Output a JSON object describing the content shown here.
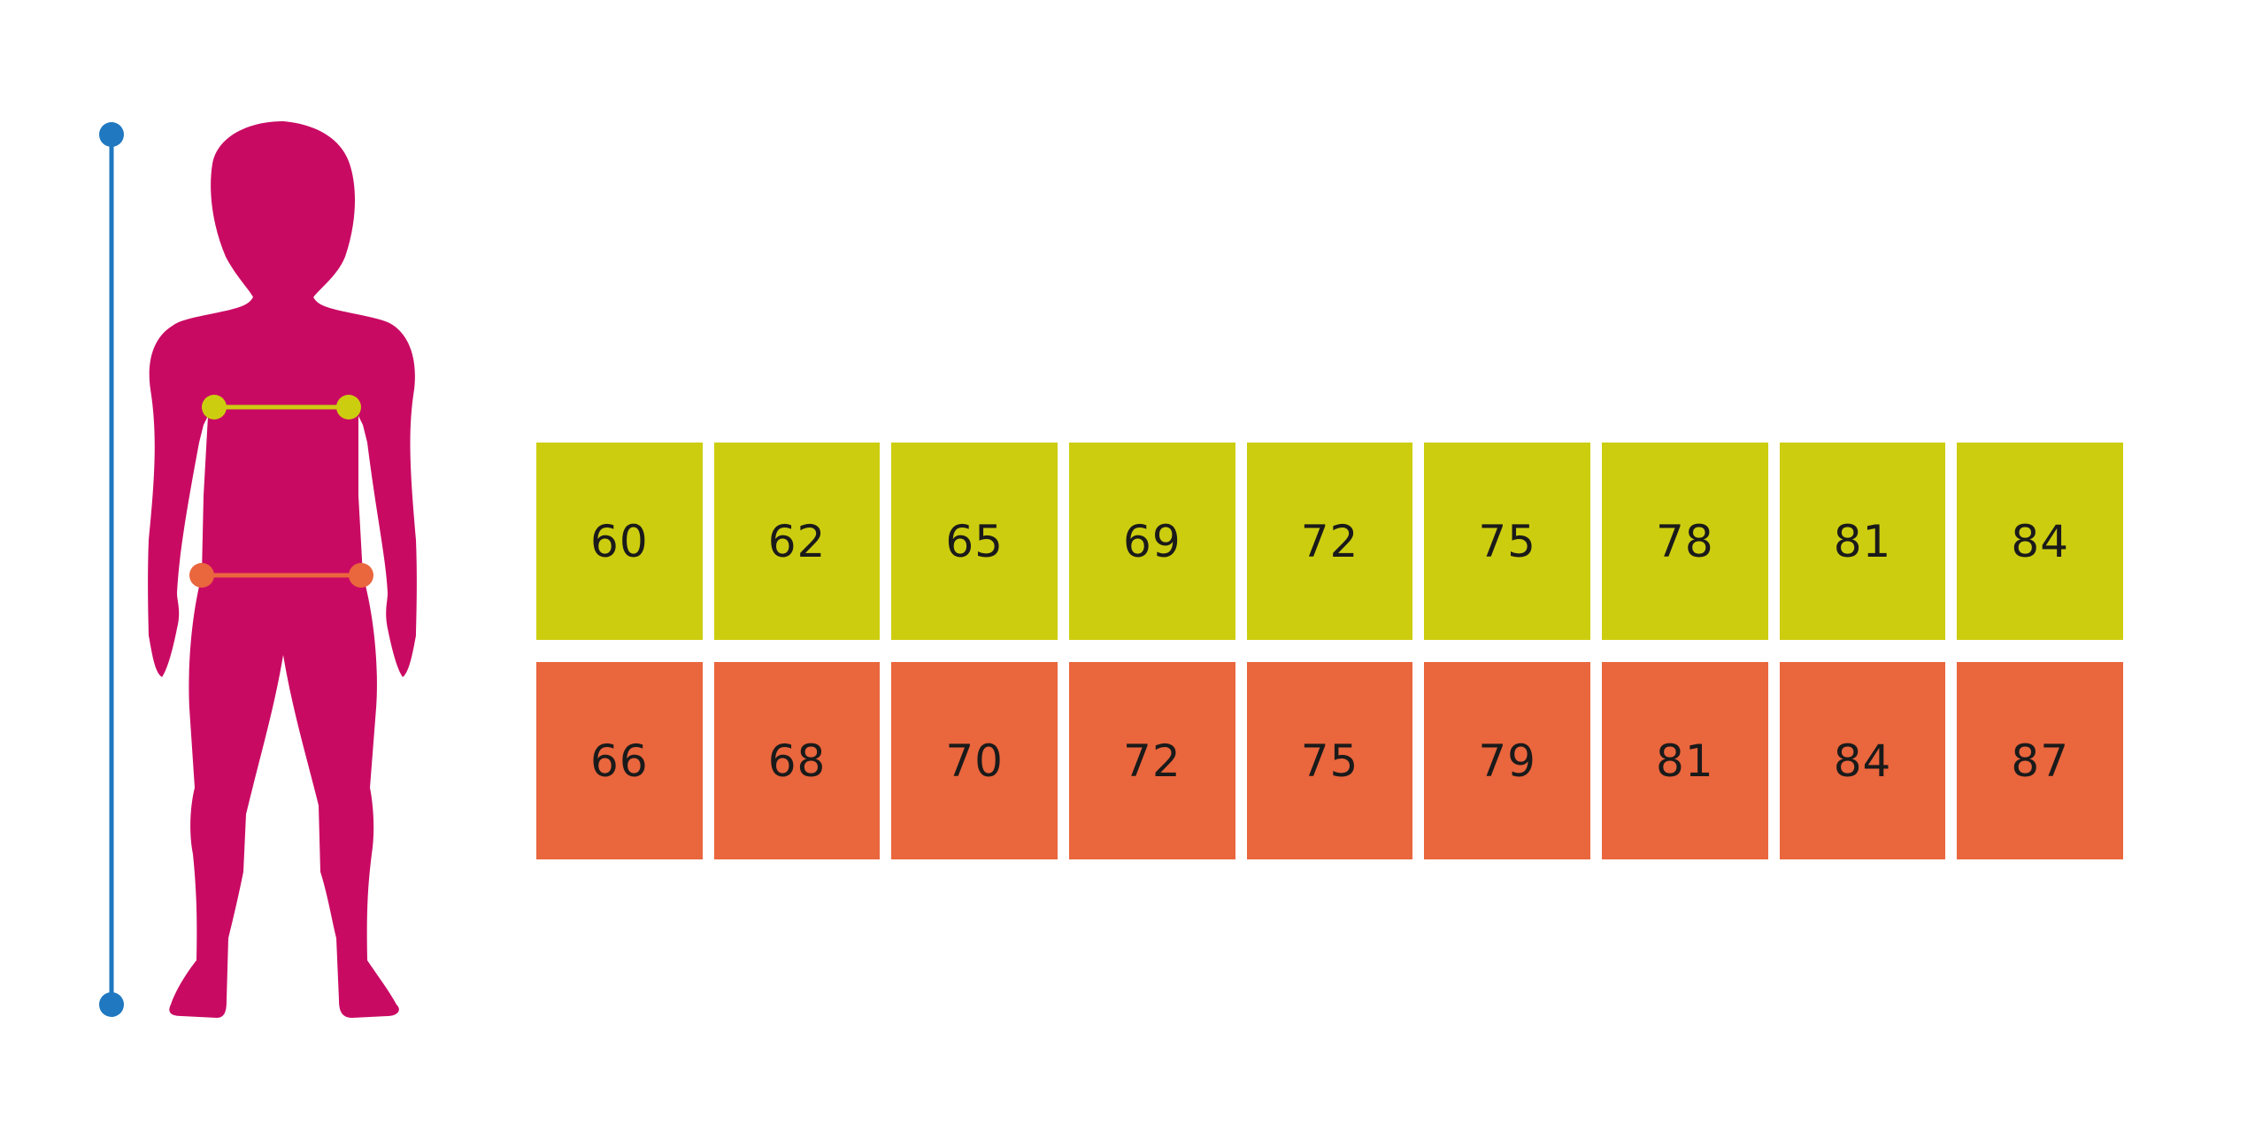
{
  "colors": {
    "figure": "#c90a63",
    "height_line": "#1f78c0",
    "chest": "#cdcd10",
    "waist": "#ea663d"
  },
  "chest_row": [
    "60",
    "62",
    "65",
    "69",
    "72",
    "75",
    "78",
    "81",
    "84"
  ],
  "waist_row": [
    "66",
    "68",
    "70",
    "72",
    "75",
    "79",
    "81",
    "84",
    "87"
  ]
}
